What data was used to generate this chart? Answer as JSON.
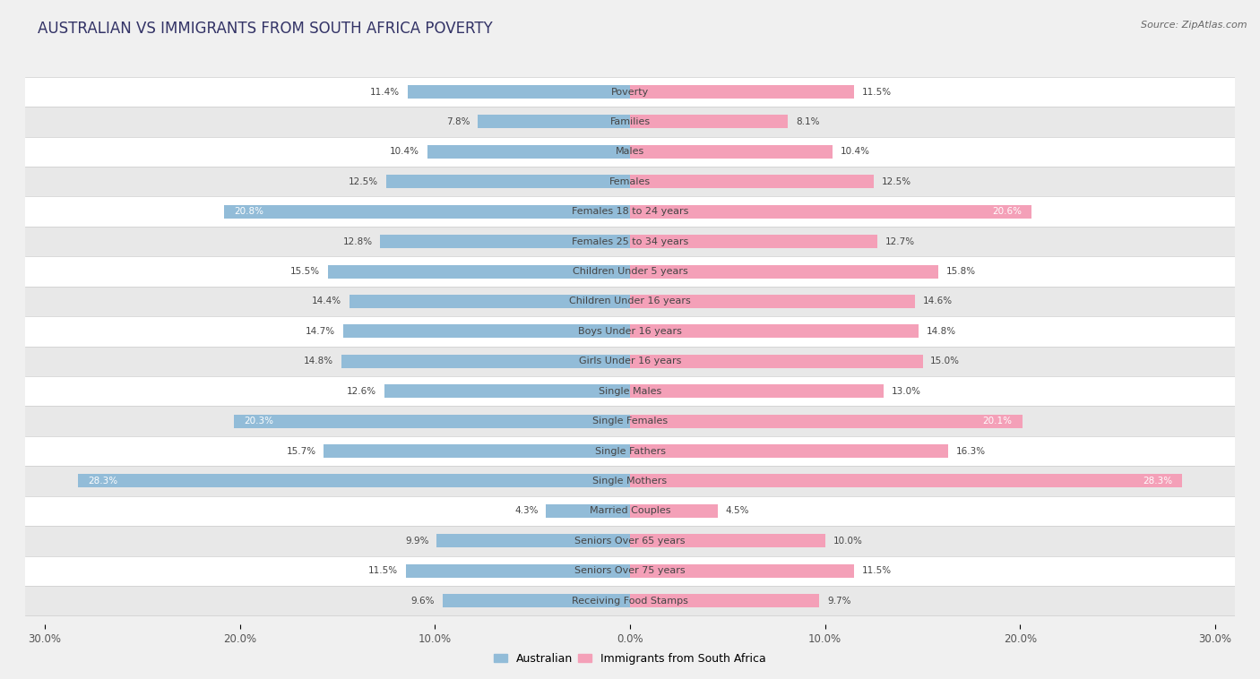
{
  "title": "AUSTRALIAN VS IMMIGRANTS FROM SOUTH AFRICA POVERTY",
  "source": "Source: ZipAtlas.com",
  "categories": [
    "Poverty",
    "Families",
    "Males",
    "Females",
    "Females 18 to 24 years",
    "Females 25 to 34 years",
    "Children Under 5 years",
    "Children Under 16 years",
    "Boys Under 16 years",
    "Girls Under 16 years",
    "Single Males",
    "Single Females",
    "Single Fathers",
    "Single Mothers",
    "Married Couples",
    "Seniors Over 65 years",
    "Seniors Over 75 years",
    "Receiving Food Stamps"
  ],
  "australian": [
    11.4,
    7.8,
    10.4,
    12.5,
    20.8,
    12.8,
    15.5,
    14.4,
    14.7,
    14.8,
    12.6,
    20.3,
    15.7,
    28.3,
    4.3,
    9.9,
    11.5,
    9.6
  ],
  "immigrants": [
    11.5,
    8.1,
    10.4,
    12.5,
    20.6,
    12.7,
    15.8,
    14.6,
    14.8,
    15.0,
    13.0,
    20.1,
    16.3,
    28.3,
    4.5,
    10.0,
    11.5,
    9.7
  ],
  "australian_color": "#92bcd8",
  "immigrants_color": "#f4a0b8",
  "background_color": "#f0f0f0",
  "row_color_white": "#ffffff",
  "row_color_gray": "#e8e8e8",
  "axis_max": 30.0,
  "bar_height": 0.45,
  "legend_australian": "Australian",
  "legend_immigrants": "Immigrants from South Africa",
  "threshold_white_label": 18.0
}
